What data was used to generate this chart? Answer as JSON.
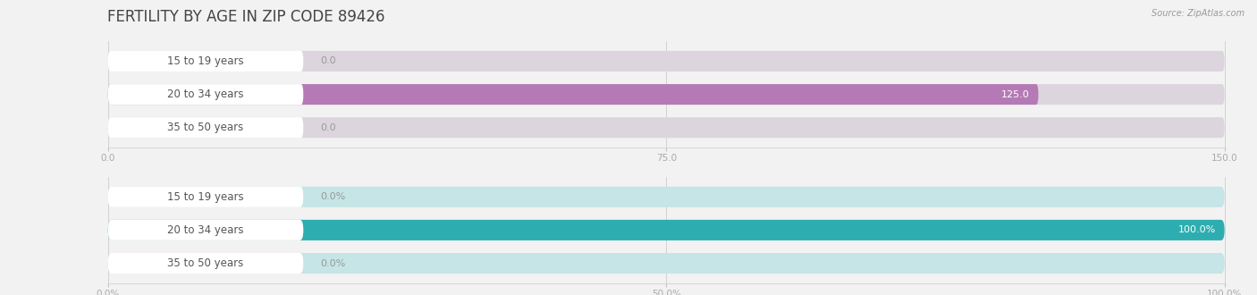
{
  "title": "FERTILITY BY AGE IN ZIP CODE 89426",
  "source": "Source: ZipAtlas.com",
  "top_chart": {
    "categories": [
      "15 to 19 years",
      "20 to 34 years",
      "35 to 50 years"
    ],
    "values": [
      0.0,
      125.0,
      0.0
    ],
    "xlim": [
      0,
      150
    ],
    "xticks": [
      0.0,
      75.0,
      150.0
    ],
    "bar_color": "#b57ab5",
    "bar_bg_color": "#ddd5de",
    "label_color": "#555555",
    "value_color": "#ffffff",
    "value_color_outside": "#999999"
  },
  "bottom_chart": {
    "categories": [
      "15 to 19 years",
      "20 to 34 years",
      "35 to 50 years"
    ],
    "values": [
      0.0,
      100.0,
      0.0
    ],
    "xlim": [
      0,
      100
    ],
    "xticks": [
      0.0,
      50.0,
      100.0
    ],
    "xtick_labels": [
      "0.0%",
      "50.0%",
      "100.0%"
    ],
    "bar_color": "#2eadb0",
    "bar_bg_color": "#c5e5e6",
    "label_color": "#555555",
    "value_color": "#ffffff",
    "value_color_outside": "#999999"
  },
  "fig_bg_color": "#f2f2f2",
  "chart_bg_color": "#f8f8f8",
  "bar_height": 0.62,
  "title_fontsize": 12,
  "label_fontsize": 8.5,
  "value_fontsize": 8,
  "tick_fontsize": 7.5,
  "source_fontsize": 7
}
